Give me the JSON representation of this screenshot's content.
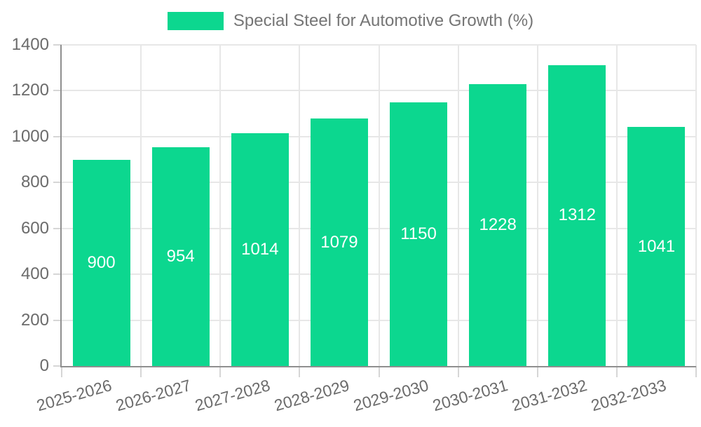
{
  "legend": {
    "label": "Special Steel for Automotive Growth (%)"
  },
  "chart_data": {
    "type": "bar",
    "title": "",
    "series_name": "Special Steel for Automotive Growth (%)",
    "categories": [
      "2025-2026",
      "2026-2027",
      "2027-2028",
      "2028-2029",
      "2029-2030",
      "2030-2031",
      "2031-2032",
      "2032-2033"
    ],
    "values": [
      900,
      954,
      1014,
      1079,
      1150,
      1228,
      1312,
      1041
    ],
    "xlabel": "",
    "ylabel": "",
    "ylim": [
      0,
      1400
    ],
    "yticks": [
      0,
      200,
      400,
      600,
      800,
      1000,
      1200,
      1400
    ],
    "grid": true,
    "legend_position": "top-center",
    "value_label_position": "inside-center",
    "x_label_rotation_deg": -16
  },
  "colors": {
    "bar": "#0cd78f",
    "axis_line": "#8f8f8f",
    "gridline": "#e7e7e7",
    "tick": "#d6d6d6",
    "axis_text": "#6b6b6b",
    "legend_text": "#757575",
    "value_text": "#ffffff",
    "background": "#ffffff"
  }
}
